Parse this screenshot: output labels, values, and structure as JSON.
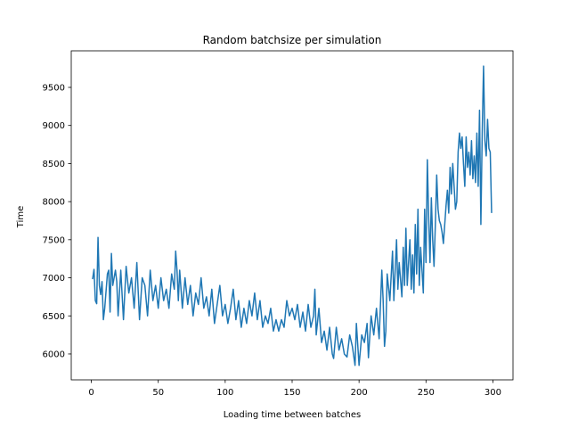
{
  "chart_data": {
    "type": "line",
    "title": "Random batchsize per simulation",
    "xlabel": "Loading time between batches",
    "ylabel": "Time",
    "xlim": [
      -15,
      315
    ],
    "ylim": [
      5660,
      9980
    ],
    "xticks": [
      0,
      50,
      100,
      150,
      200,
      250,
      300
    ],
    "yticks": [
      6000,
      6500,
      7000,
      7500,
      8000,
      8500,
      9000,
      9500
    ],
    "grid": false,
    "series": [
      {
        "name": "time",
        "color": "#1f77b4",
        "x_start": 1,
        "x_step": 1,
        "keypoints": [
          [
            1,
            6990
          ],
          [
            2,
            7110
          ],
          [
            3,
            6700
          ],
          [
            4,
            6660
          ],
          [
            5,
            7530
          ],
          [
            6,
            6900
          ],
          [
            7,
            6780
          ],
          [
            8,
            6950
          ],
          [
            9,
            6450
          ],
          [
            10,
            6600
          ],
          [
            12,
            7050
          ],
          [
            13,
            7100
          ],
          [
            14,
            6550
          ],
          [
            15,
            7320
          ],
          [
            16,
            6900
          ],
          [
            18,
            7100
          ],
          [
            19,
            6950
          ],
          [
            20,
            6500
          ],
          [
            22,
            7100
          ],
          [
            24,
            6450
          ],
          [
            26,
            7150
          ],
          [
            28,
            6800
          ],
          [
            30,
            7000
          ],
          [
            32,
            6600
          ],
          [
            34,
            7200
          ],
          [
            36,
            6450
          ],
          [
            38,
            7000
          ],
          [
            40,
            6900
          ],
          [
            42,
            6500
          ],
          [
            44,
            7100
          ],
          [
            46,
            6700
          ],
          [
            48,
            6900
          ],
          [
            50,
            6600
          ],
          [
            52,
            7000
          ],
          [
            54,
            6700
          ],
          [
            56,
            6850
          ],
          [
            58,
            6600
          ],
          [
            60,
            7050
          ],
          [
            62,
            6850
          ],
          [
            63,
            7350
          ],
          [
            64,
            7100
          ],
          [
            65,
            6700
          ],
          [
            66,
            7100
          ],
          [
            68,
            6600
          ],
          [
            70,
            7000
          ],
          [
            72,
            6650
          ],
          [
            74,
            6900
          ],
          [
            76,
            6500
          ],
          [
            78,
            6800
          ],
          [
            80,
            6650
          ],
          [
            82,
            7000
          ],
          [
            84,
            6600
          ],
          [
            86,
            6750
          ],
          [
            88,
            6500
          ],
          [
            90,
            6850
          ],
          [
            92,
            6400
          ],
          [
            94,
            6650
          ],
          [
            96,
            6900
          ],
          [
            98,
            6500
          ],
          [
            100,
            6650
          ],
          [
            102,
            6400
          ],
          [
            104,
            6600
          ],
          [
            106,
            6850
          ],
          [
            108,
            6450
          ],
          [
            110,
            6700
          ],
          [
            112,
            6350
          ],
          [
            114,
            6600
          ],
          [
            116,
            6400
          ],
          [
            118,
            6700
          ],
          [
            120,
            6500
          ],
          [
            122,
            6800
          ],
          [
            124,
            6450
          ],
          [
            126,
            6700
          ],
          [
            128,
            6350
          ],
          [
            130,
            6500
          ],
          [
            132,
            6400
          ],
          [
            134,
            6600
          ],
          [
            136,
            6300
          ],
          [
            138,
            6450
          ],
          [
            140,
            6300
          ],
          [
            142,
            6450
          ],
          [
            144,
            6350
          ],
          [
            146,
            6700
          ],
          [
            148,
            6500
          ],
          [
            150,
            6600
          ],
          [
            152,
            6450
          ],
          [
            154,
            6650
          ],
          [
            156,
            6350
          ],
          [
            158,
            6550
          ],
          [
            160,
            6300
          ],
          [
            162,
            6650
          ],
          [
            164,
            6350
          ],
          [
            166,
            6500
          ],
          [
            167,
            6850
          ],
          [
            168,
            6250
          ],
          [
            170,
            6600
          ],
          [
            172,
            6150
          ],
          [
            174,
            6300
          ],
          [
            176,
            6050
          ],
          [
            178,
            6350
          ],
          [
            180,
            6000
          ],
          [
            181,
            5940
          ],
          [
            183,
            6350
          ],
          [
            185,
            6050
          ],
          [
            187,
            6200
          ],
          [
            189,
            6000
          ],
          [
            191,
            5960
          ],
          [
            193,
            6250
          ],
          [
            195,
            6100
          ],
          [
            197,
            5850
          ],
          [
            198,
            6400
          ],
          [
            200,
            5850
          ],
          [
            202,
            6250
          ],
          [
            204,
            6150
          ],
          [
            206,
            6400
          ],
          [
            207,
            5950
          ],
          [
            209,
            6500
          ],
          [
            211,
            6250
          ],
          [
            213,
            6600
          ],
          [
            215,
            6200
          ],
          [
            217,
            7100
          ],
          [
            218,
            6700
          ],
          [
            219,
            6100
          ],
          [
            220,
            6300
          ],
          [
            221,
            7050
          ],
          [
            223,
            6700
          ],
          [
            225,
            7350
          ],
          [
            226,
            6700
          ],
          [
            228,
            7500
          ],
          [
            229,
            6850
          ],
          [
            230,
            7200
          ],
          [
            232,
            6750
          ],
          [
            233,
            7400
          ],
          [
            234,
            6900
          ],
          [
            235,
            7650
          ],
          [
            236,
            6900
          ],
          [
            238,
            7500
          ],
          [
            239,
            6850
          ],
          [
            240,
            7300
          ],
          [
            241,
            6800
          ],
          [
            242,
            7700
          ],
          [
            243,
            7050
          ],
          [
            244,
            7900
          ],
          [
            245,
            6900
          ],
          [
            246,
            7400
          ],
          [
            248,
            6800
          ],
          [
            249,
            7900
          ],
          [
            250,
            7200
          ],
          [
            251,
            8550
          ],
          [
            252,
            7800
          ],
          [
            253,
            7200
          ],
          [
            254,
            8050
          ],
          [
            255,
            7500
          ],
          [
            256,
            7150
          ],
          [
            257,
            7700
          ],
          [
            258,
            8350
          ],
          [
            259,
            7900
          ],
          [
            260,
            7750
          ],
          [
            261,
            7700
          ],
          [
            262,
            7600
          ],
          [
            263,
            7450
          ],
          [
            264,
            7700
          ],
          [
            265,
            7950
          ],
          [
            266,
            8150
          ],
          [
            267,
            7850
          ],
          [
            268,
            8450
          ],
          [
            269,
            8100
          ],
          [
            270,
            8500
          ],
          [
            271,
            8200
          ],
          [
            272,
            7900
          ],
          [
            273,
            8000
          ],
          [
            274,
            8650
          ],
          [
            275,
            8900
          ],
          [
            276,
            8700
          ],
          [
            277,
            8850
          ],
          [
            278,
            8500
          ],
          [
            279,
            8200
          ],
          [
            280,
            8850
          ],
          [
            281,
            8450
          ],
          [
            282,
            8650
          ],
          [
            283,
            8350
          ],
          [
            284,
            8800
          ],
          [
            285,
            8300
          ],
          [
            286,
            8600
          ],
          [
            287,
            8250
          ],
          [
            288,
            8900
          ],
          [
            289,
            8200
          ],
          [
            290,
            9200
          ],
          [
            291,
            7700
          ],
          [
            292,
            8900
          ],
          [
            293,
            9780
          ],
          [
            294,
            8800
          ],
          [
            295,
            8600
          ],
          [
            296,
            9080
          ],
          [
            297,
            8700
          ],
          [
            298,
            8650
          ],
          [
            299,
            7860
          ]
        ]
      }
    ]
  }
}
